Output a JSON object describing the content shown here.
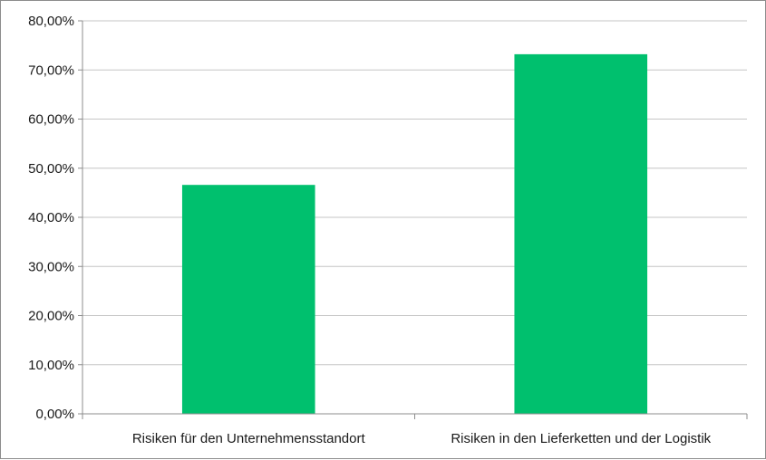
{
  "chart_data": {
    "type": "bar",
    "title": "",
    "xlabel": "",
    "ylabel": "",
    "categories": [
      "Risiken für den Unternehmensstandort",
      "Risiken in den Lieferketten und der Logistik"
    ],
    "values": [
      46.6,
      73.2
    ],
    "ylim": [
      0,
      80
    ],
    "ytick_step": 10,
    "ytick_labels": [
      "0,00%",
      "10,00%",
      "20,00%",
      "30,00%",
      "40,00%",
      "50,00%",
      "60,00%",
      "70,00%",
      "80,00%"
    ],
    "grid": true,
    "legend": "none",
    "bar_color": "#00c06e",
    "grid_color": "#c6c6c6",
    "axis_color": "#8c8c8c"
  }
}
